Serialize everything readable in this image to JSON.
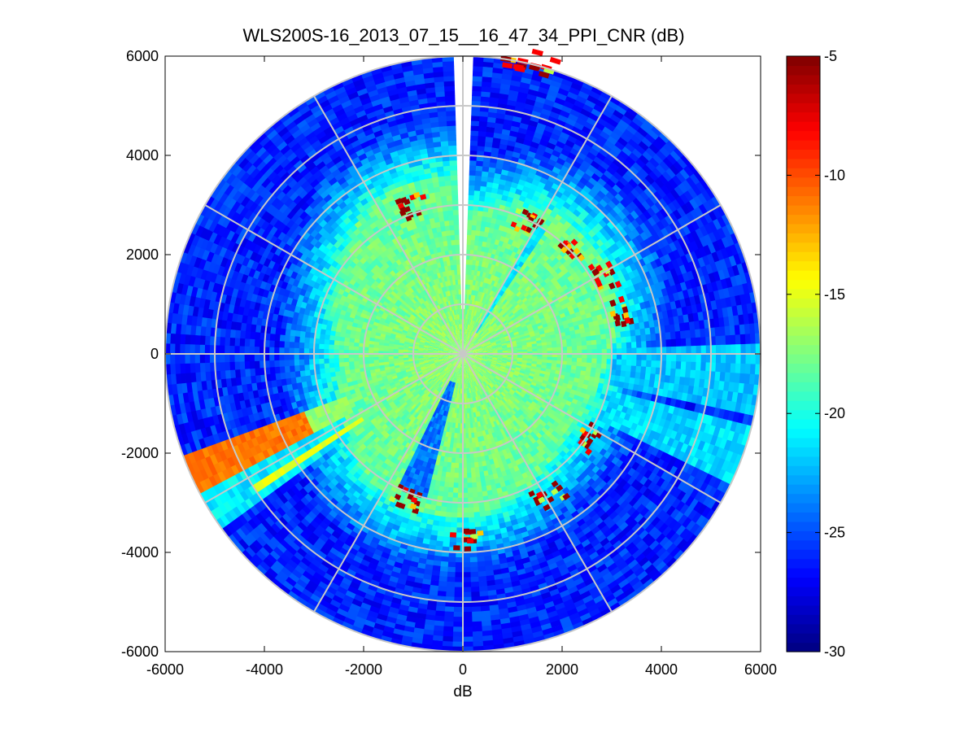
{
  "chart_data": {
    "type": "heatmap",
    "subtype": "polar-ppi",
    "title": "WLS200S-16_2013_07_15__16_47_34_PPI_CNR (dB)",
    "xlabel": "dB",
    "ylabel": "",
    "xlim": [
      -6000,
      6000
    ],
    "ylim": [
      -6000,
      6000
    ],
    "x_ticks": [
      -6000,
      -4000,
      -2000,
      0,
      2000,
      4000,
      6000
    ],
    "y_ticks": [
      -6000,
      -4000,
      -2000,
      0,
      2000,
      4000,
      6000
    ],
    "x_tick_labels": [
      "-6000",
      "-4000",
      "-2000",
      "0",
      "2000",
      "4000",
      "6000"
    ],
    "y_tick_labels": [
      "-6000",
      "-4000",
      "-2000",
      "0",
      "2000",
      "4000",
      "6000"
    ],
    "max_range": 6000,
    "range_rings": [
      1000,
      2000,
      3000,
      4000,
      5000,
      6000
    ],
    "radial_lines_deg": [
      0,
      30,
      60,
      90,
      120,
      150,
      180,
      210,
      240,
      270,
      300,
      330
    ],
    "colormap": "jet",
    "colorbar": {
      "min": -30,
      "max": -5,
      "ticks": [
        -5,
        -10,
        -15,
        -20,
        -25,
        -30
      ],
      "tick_labels": [
        "-5",
        "-10",
        "-15",
        "-20",
        "-25",
        "-30"
      ]
    },
    "features": {
      "inner_cnr_db": -17,
      "outer_cnr_db": -26,
      "transition_range": 3000,
      "strong_beam": {
        "azimuth_deg": 246,
        "range_start": 3400,
        "range_end": 6000,
        "cnr_db": -11
      },
      "second_beam": {
        "azimuth_deg": 237,
        "range_start": 2400,
        "range_end": 5000,
        "cnr_db": -15
      },
      "blocked_sector": {
        "azimuth_deg": 0,
        "half_width_deg": 1.5,
        "range_start": 900
      }
    },
    "high_cnr_clusters": [
      {
        "azimuth_deg": 25,
        "range": 2900
      },
      {
        "azimuth_deg": 45,
        "range": 3000
      },
      {
        "azimuth_deg": 60,
        "range": 3200
      },
      {
        "azimuth_deg": 75,
        "range": 3200
      },
      {
        "azimuth_deg": 122,
        "range": 3000
      },
      {
        "azimuth_deg": 148,
        "range": 3300
      },
      {
        "azimuth_deg": 178,
        "range": 3700
      },
      {
        "azimuth_deg": 200,
        "range": 3100
      },
      {
        "azimuth_deg": 340,
        "range": 3100
      },
      {
        "azimuth_deg": 12,
        "range": 6000
      }
    ]
  }
}
